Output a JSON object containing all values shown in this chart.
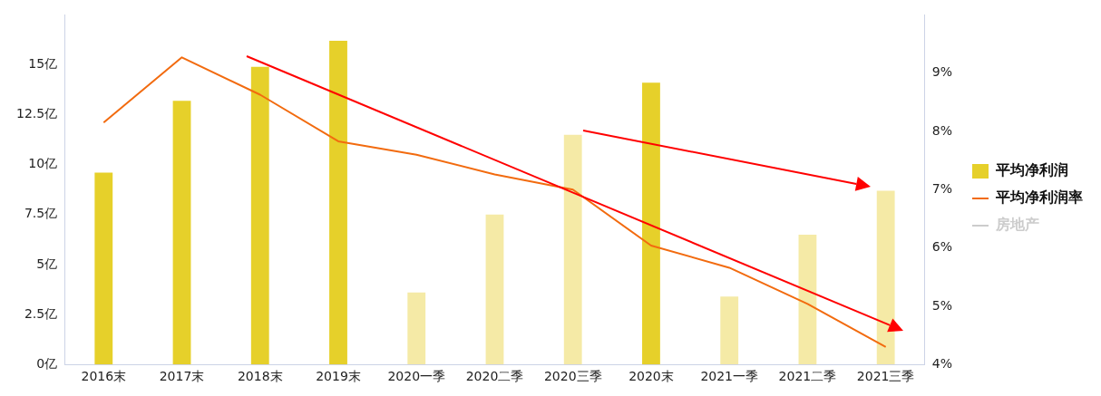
{
  "chart_data": {
    "type": "bar",
    "categories": [
      "2016末",
      "2017末",
      "2018末",
      "2019末",
      "2020一季",
      "2020二季",
      "2020三季",
      "2020末",
      "2021一季",
      "2021二季",
      "2021三季"
    ],
    "series": [
      {
        "name": "平均净利润",
        "color": "#e6d02a",
        "colors": [
          "#e6d02a",
          "#e6d02a",
          "#e6d02a",
          "#e6d02a",
          "#f5eaa6",
          "#f5eaa6",
          "#f5eaa6",
          "#e6d02a",
          "#f5eaa6",
          "#f5eaa6",
          "#f5eaa6"
        ],
        "values": [
          9.6,
          13.2,
          14.9,
          16.2,
          3.6,
          7.5,
          11.5,
          14.1,
          3.4,
          6.5,
          8.7
        ]
      },
      {
        "name": "平均净利润率",
        "type": "line",
        "axis": "y2",
        "color": "#f26b0f",
        "values": [
          8.15,
          9.27,
          8.63,
          7.83,
          7.6,
          7.26,
          7.0,
          6.04,
          5.66,
          5.04,
          4.3
        ]
      },
      {
        "name": "房地产",
        "type": "line",
        "color": "#cccccc",
        "values": [
          null,
          null,
          null,
          null,
          null,
          null,
          null,
          null,
          null,
          null,
          null
        ]
      }
    ],
    "ylim": [
      0,
      17.5
    ],
    "yticks": [
      {
        "value": 0,
        "label": "0亿"
      },
      {
        "value": 2.5,
        "label": "2.5亿"
      },
      {
        "value": 5,
        "label": "5亿"
      },
      {
        "value": 7.5,
        "label": "7.5亿"
      },
      {
        "value": 10,
        "label": "10亿"
      },
      {
        "value": 12.5,
        "label": "12.5亿"
      },
      {
        "value": 15,
        "label": "15亿"
      }
    ],
    "y2lim": [
      4,
      10
    ],
    "y2ticks": [
      {
        "value": 4,
        "label": "4%"
      },
      {
        "value": 5,
        "label": "5%"
      },
      {
        "value": 6,
        "label": "6%"
      },
      {
        "value": 7,
        "label": "7%"
      },
      {
        "value": 8,
        "label": "8%"
      },
      {
        "value": 9,
        "label": "9%"
      }
    ],
    "grid": false,
    "legend": "right",
    "marker": "none",
    "line_style": "solid"
  }
}
